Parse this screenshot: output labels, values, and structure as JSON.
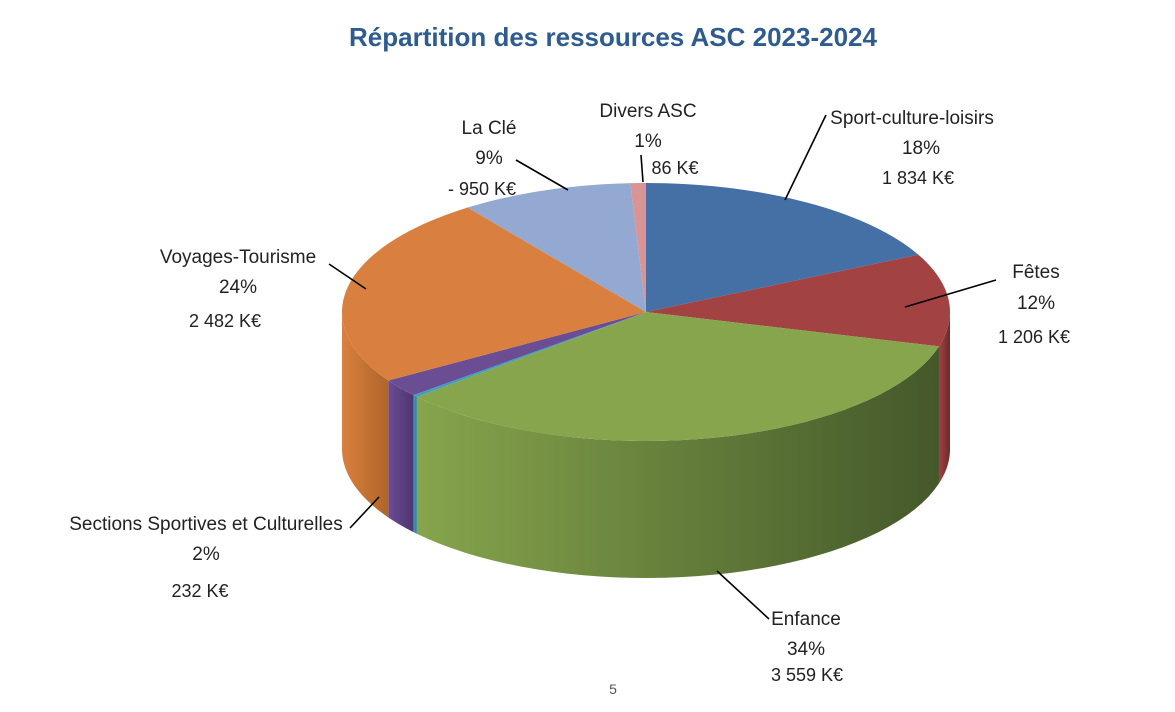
{
  "chart_data": {
    "type": "pie",
    "title": "Répartition des ressources ASC 2023-2024",
    "slices": [
      {
        "name": "Sport-culture-loisirs",
        "percent": "18%",
        "value": 1834,
        "amount": "1 834 K€",
        "color": "#4470a6",
        "side": "#2a4a75"
      },
      {
        "name": "Fêtes",
        "percent": "12%",
        "value": 1206,
        "amount": "1 206 K€",
        "color": "#a34242",
        "side": "#6e2828"
      },
      {
        "name": "Enfance",
        "percent": "34%",
        "value": 3559,
        "amount": "3 559 K€",
        "color": "#86a54c",
        "side": "#44582a"
      },
      {
        "name": "",
        "percent": "",
        "value": 28,
        "amount": "",
        "color": "#3d9fc2",
        "side": "#2b7a96"
      },
      {
        "name": "Sections Sportives et Culturelles",
        "percent": "2%",
        "value": 232,
        "amount": "232 K€",
        "color": "#6b4d94",
        "side": "#4e3570"
      },
      {
        "name": "Voyages-Tourisme",
        "percent": "24%",
        "value": 2482,
        "amount": "2 482 K€",
        "color": "#d98040",
        "side": "#b06528"
      },
      {
        "name": "La Clé",
        "percent": "9%",
        "value": 950,
        "amount": "- 950 K€",
        "color": "#93a9d2",
        "side": "#6d82aa"
      },
      {
        "name": "Divers ASC",
        "percent": "1%",
        "value": 86,
        "amount": "86 K€",
        "color": "#d99595",
        "side": "#b07070"
      }
    ]
  },
  "footer": {
    "page_number": "5"
  }
}
